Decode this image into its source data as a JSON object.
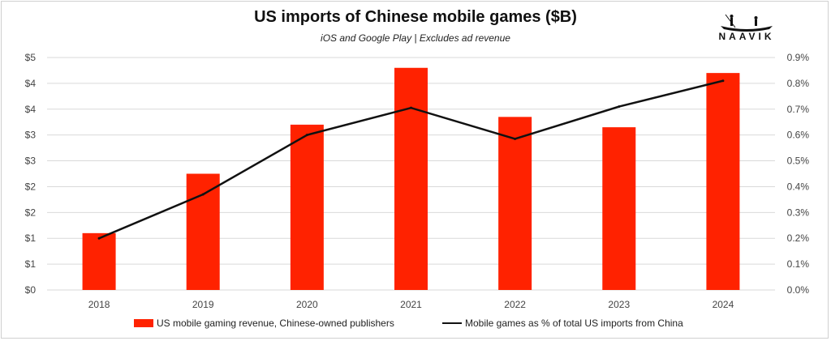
{
  "chart_data": {
    "type": "bar",
    "title": "US imports of Chinese mobile games ($B)",
    "subtitle": "iOS and Google Play | Excludes ad revenue",
    "categories": [
      "2018",
      "2019",
      "2020",
      "2021",
      "2022",
      "2023",
      "2024"
    ],
    "series": [
      {
        "name": "US mobile gaming revenue, Chinese-owned publishers",
        "kind": "bar",
        "axis": "left",
        "color": "#ff2200",
        "values": [
          1.1,
          2.25,
          3.2,
          4.3,
          3.35,
          3.15,
          4.2
        ]
      },
      {
        "name": "Mobile games as % of total US imports from China",
        "kind": "line",
        "axis": "right",
        "color": "#111111",
        "values": [
          0.2,
          0.37,
          0.6,
          0.705,
          0.585,
          0.71,
          0.81
        ]
      }
    ],
    "ylim_left": [
      0,
      4.5
    ],
    "yticks_left": [
      "$0",
      "$1",
      "$1",
      "$2",
      "$2",
      "$3",
      "$3",
      "$4",
      "$4",
      "$5"
    ],
    "ylim_right": [
      0,
      0.9
    ],
    "yticks_right": [
      "0.0%",
      "0.1%",
      "0.2%",
      "0.3%",
      "0.4%",
      "0.5%",
      "0.6%",
      "0.7%",
      "0.8%",
      "0.9%"
    ],
    "grid": true,
    "legend_position": "bottom"
  },
  "logo": {
    "text": "NAAVIK"
  }
}
